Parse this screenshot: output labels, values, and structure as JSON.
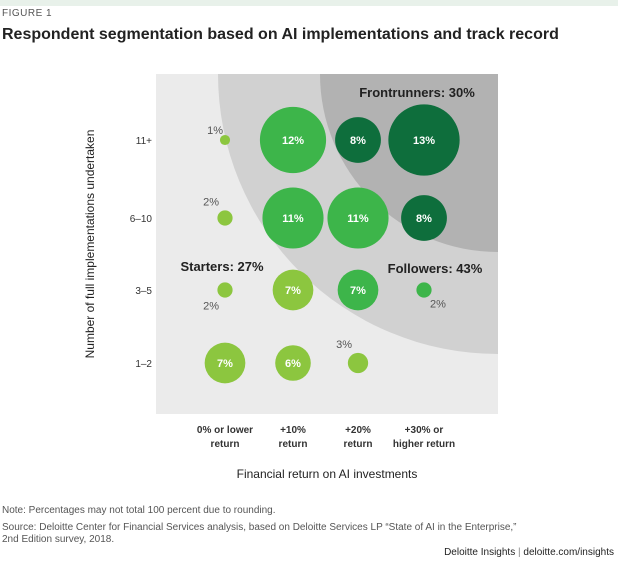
{
  "figure_label": "FIGURE 1",
  "title": "Respondent segmentation based on AI implementations and track record",
  "chart_data": {
    "type": "scatter",
    "title": "Respondent segmentation based on AI implementations and track record",
    "xlabel": "Financial return on AI investments",
    "ylabel": "Number of full implementations undertaken",
    "x_categories": [
      [
        "0% or lower",
        "return"
      ],
      [
        "+10%",
        "return"
      ],
      [
        "+20%",
        "return"
      ],
      [
        "+30% or",
        "higher return"
      ]
    ],
    "y_categories": [
      "1–2",
      "3–5",
      "6–10",
      "11+"
    ],
    "segments": [
      {
        "label": "Starters: 27%",
        "color": "#eaeaea"
      },
      {
        "label": "Followers: 43%",
        "color": "#cfcfcf"
      },
      {
        "label": "Frontrunners: 30%",
        "color": "#b3b3b3"
      }
    ],
    "points": [
      {
        "x": 0,
        "y": 3,
        "value": 1,
        "label": "1%",
        "segment": "Starters",
        "color": "#8cc63f",
        "label_pos": "above-left"
      },
      {
        "x": 1,
        "y": 3,
        "value": 12,
        "label": "12%",
        "segment": "Followers",
        "color": "#3db54a",
        "label_pos": "inside"
      },
      {
        "x": 2,
        "y": 3,
        "value": 8,
        "label": "8%",
        "segment": "Frontrunners",
        "color": "#0e6e3c",
        "label_pos": "inside"
      },
      {
        "x": 3,
        "y": 3,
        "value": 13,
        "label": "13%",
        "segment": "Frontrunners",
        "color": "#0e6e3c",
        "label_pos": "inside"
      },
      {
        "x": 0,
        "y": 2,
        "value": 2,
        "label": "2%",
        "segment": "Starters",
        "color": "#8cc63f",
        "label_pos": "above-left"
      },
      {
        "x": 1,
        "y": 2,
        "value": 11,
        "label": "11%",
        "segment": "Followers",
        "color": "#3db54a",
        "label_pos": "inside"
      },
      {
        "x": 2,
        "y": 2,
        "value": 11,
        "label": "11%",
        "segment": "Followers",
        "color": "#3db54a",
        "label_pos": "inside"
      },
      {
        "x": 3,
        "y": 2,
        "value": 8,
        "label": "8%",
        "segment": "Frontrunners",
        "color": "#0e6e3c",
        "label_pos": "inside"
      },
      {
        "x": 0,
        "y": 1,
        "value": 2,
        "label": "2%",
        "segment": "Starters",
        "color": "#8cc63f",
        "label_pos": "below-left"
      },
      {
        "x": 1,
        "y": 1,
        "value": 7,
        "label": "7%",
        "segment": "Starters",
        "color": "#8cc63f",
        "label_pos": "inside"
      },
      {
        "x": 2,
        "y": 1,
        "value": 7,
        "label": "7%",
        "segment": "Followers",
        "color": "#3db54a",
        "label_pos": "inside"
      },
      {
        "x": 3,
        "y": 1,
        "value": 2,
        "label": "2%",
        "segment": "Followers",
        "color": "#3db54a",
        "label_pos": "below-right"
      },
      {
        "x": 0,
        "y": 0,
        "value": 7,
        "label": "7%",
        "segment": "Starters",
        "color": "#8cc63f",
        "label_pos": "inside"
      },
      {
        "x": 1,
        "y": 0,
        "value": 6,
        "label": "6%",
        "segment": "Starters",
        "color": "#8cc63f",
        "label_pos": "inside"
      },
      {
        "x": 2,
        "y": 0,
        "value": 3,
        "label": "3%",
        "segment": "Starters",
        "color": "#8cc63f",
        "label_pos": "above-left"
      }
    ]
  },
  "notes": {
    "note": "Note: Percentages may not total 100 percent due to rounding.",
    "source_line1": "Source: Deloitte Center for Financial Services analysis, based on Deloitte Services LP “State of AI in the Enterprise,”",
    "source_line2": "2nd Edition survey, 2018."
  },
  "credit": {
    "brand": "Deloitte Insights",
    "separator": "|",
    "url": "deloitte.com/insights"
  }
}
